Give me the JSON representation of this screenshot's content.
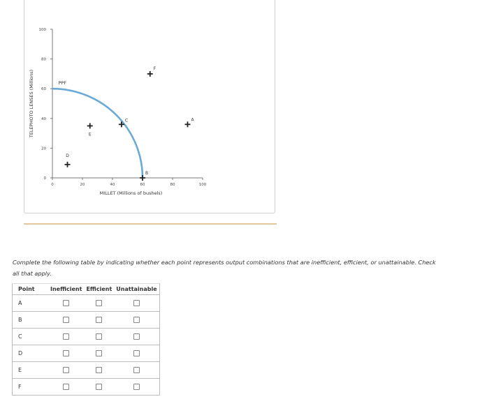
{
  "chart_data": {
    "type": "line",
    "xlabel": "MILLET (Millions of bushels)",
    "ylabel": "TELEPHOTO LENSES (Millions)",
    "xlim": [
      0,
      100
    ],
    "ylim": [
      0,
      100
    ],
    "x_ticks": [
      0,
      20,
      40,
      60,
      80,
      100
    ],
    "y_ticks": [
      0,
      20,
      40,
      60,
      80,
      100
    ],
    "curve_label": "PPF",
    "curve": {
      "x_intercept": 60,
      "y_intercept": 60,
      "shape": "quarter-circle",
      "color": "#6aaad6"
    },
    "points": [
      {
        "label": "A",
        "x": 90,
        "y": 36
      },
      {
        "label": "B",
        "x": 60,
        "y": 0
      },
      {
        "label": "C",
        "x": 46,
        "y": 36
      },
      {
        "label": "D",
        "x": 10,
        "y": 9
      },
      {
        "label": "E",
        "x": 25,
        "y": 35
      },
      {
        "label": "F",
        "x": 65,
        "y": 70
      }
    ],
    "grid": false
  },
  "instructions": "Complete the following table by indicating whether each point represents output combinations that are inefficient, efficient, or unattainable. Check all that apply.",
  "table": {
    "headers": [
      "Point",
      "Inefficient",
      "Efficient",
      "Unattainable"
    ],
    "rows": [
      "A",
      "B",
      "C",
      "D",
      "E",
      "F"
    ]
  }
}
